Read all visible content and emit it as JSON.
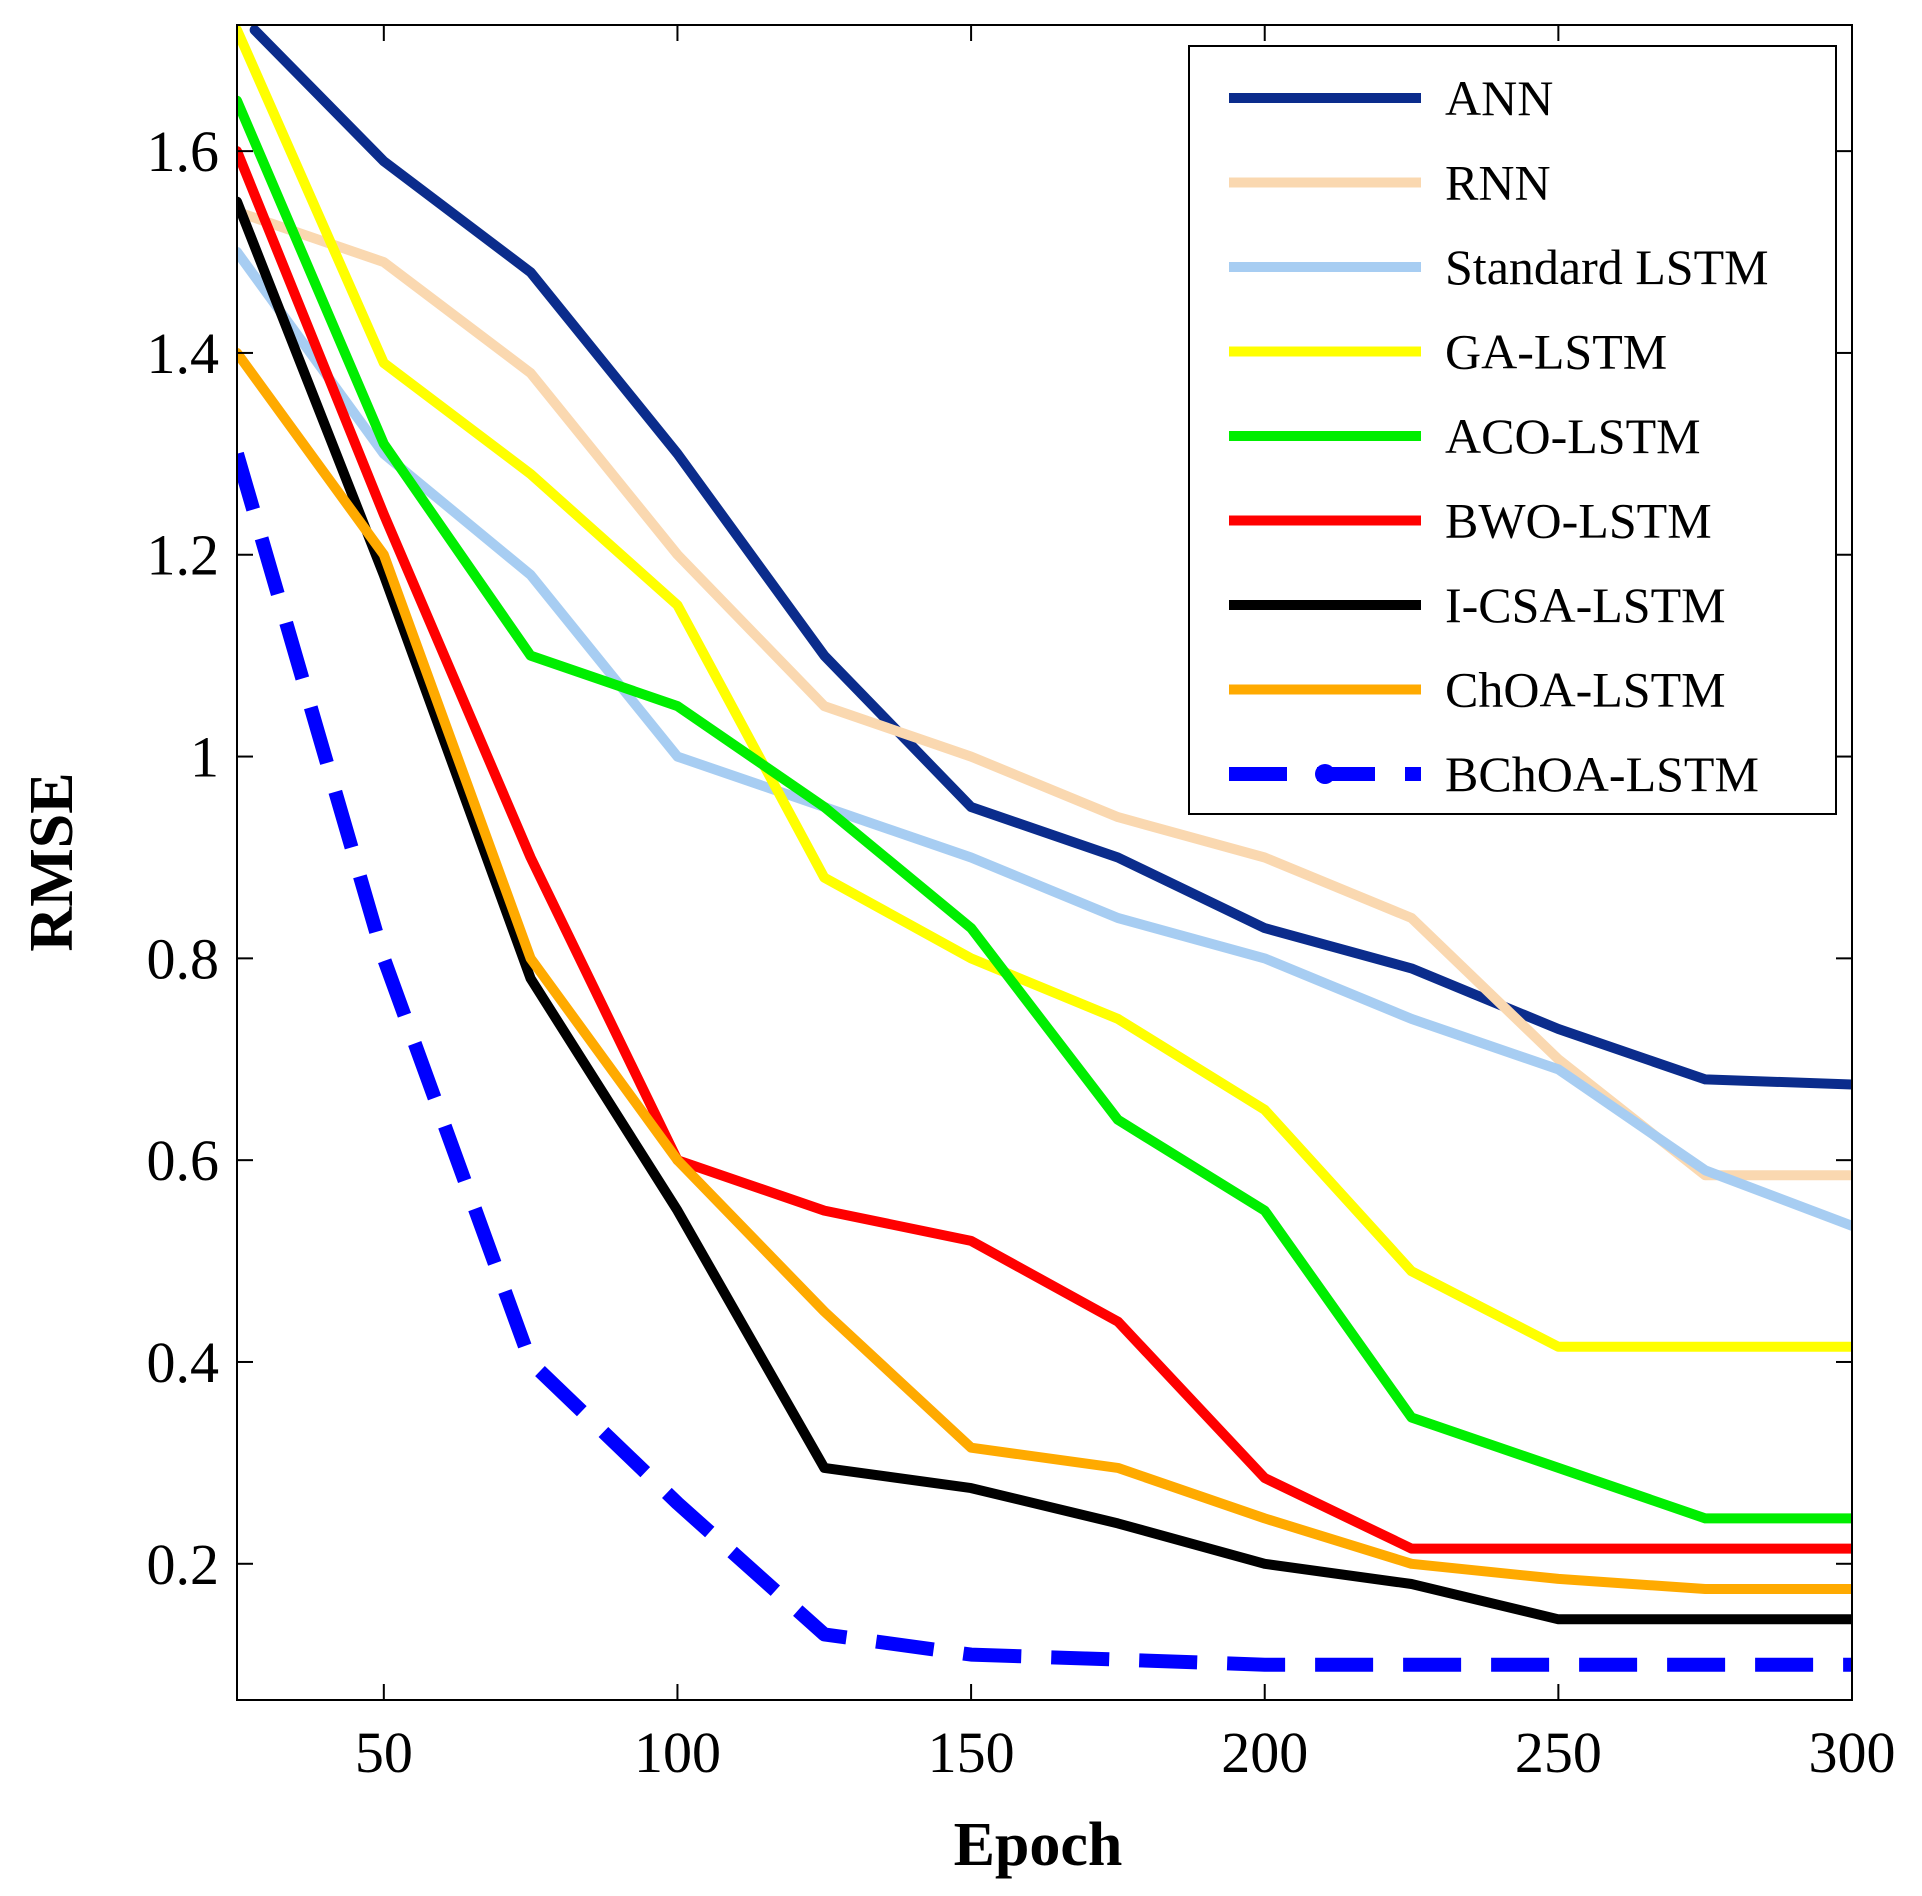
{
  "chart_data": {
    "type": "line",
    "title": "",
    "xlabel": "Epoch",
    "ylabel": "RMSE",
    "xlim": [
      25,
      300
    ],
    "ylim": [
      0.065,
      1.725
    ],
    "xticks": [
      50,
      100,
      150,
      200,
      250,
      300
    ],
    "xtick_labels": [
      "50",
      "100",
      "150",
      "200",
      "250",
      "300"
    ],
    "yticks": [
      0.2,
      0.4,
      0.6,
      0.8,
      1.0,
      1.2,
      1.4,
      1.6
    ],
    "ytick_labels": [
      "0.2",
      "0.4",
      "0.6",
      "0.8",
      "1",
      "1.2",
      "1.4",
      "1.6"
    ],
    "grid": false,
    "legend_position": "top-right",
    "x": [
      25,
      50,
      75,
      100,
      125,
      150,
      175,
      200,
      225,
      250,
      275,
      300
    ],
    "series": [
      {
        "name": "ANN",
        "color": "#0b2c8c",
        "dashed": false,
        "x": [
          28,
          50,
          75,
          100,
          125,
          150,
          175,
          200,
          225,
          250,
          275,
          300
        ],
        "values": [
          1.72,
          1.59,
          1.48,
          1.3,
          1.1,
          0.95,
          0.9,
          0.83,
          0.79,
          0.73,
          0.68,
          0.675
        ]
      },
      {
        "name": "RNN",
        "color": "#fad8b0",
        "dashed": false,
        "values": [
          1.54,
          1.49,
          1.38,
          1.2,
          1.05,
          1.0,
          0.94,
          0.9,
          0.84,
          0.7,
          0.585,
          0.585
        ]
      },
      {
        "name": "Standard LSTM",
        "color": "#a7cdf2",
        "dashed": false,
        "values": [
          1.5,
          1.3,
          1.18,
          1.0,
          0.95,
          0.9,
          0.84,
          0.8,
          0.74,
          0.69,
          0.59,
          0.535
        ]
      },
      {
        "name": "GA-LSTM",
        "color": "#ffff00",
        "dashed": false,
        "values": [
          1.72,
          1.39,
          1.28,
          1.15,
          0.88,
          0.8,
          0.74,
          0.65,
          0.49,
          0.415,
          0.415,
          0.415
        ]
      },
      {
        "name": "ACO-LSTM",
        "color": "#00ee00",
        "dashed": false,
        "values": [
          1.65,
          1.31,
          1.1,
          1.05,
          0.95,
          0.83,
          0.64,
          0.55,
          0.345,
          0.295,
          0.245,
          0.245
        ]
      },
      {
        "name": "BWO-LSTM",
        "color": "#ff0000",
        "dashed": false,
        "values": [
          1.6,
          1.24,
          0.9,
          0.6,
          0.55,
          0.52,
          0.44,
          0.285,
          0.215,
          0.215,
          0.215,
          0.215
        ]
      },
      {
        "name": "I-CSA-LSTM",
        "color": "#000000",
        "dashed": false,
        "values": [
          1.55,
          1.18,
          0.78,
          0.55,
          0.295,
          0.275,
          0.24,
          0.2,
          0.18,
          0.145,
          0.145,
          0.145
        ]
      },
      {
        "name": "ChOA-LSTM",
        "color": "#ffaa00",
        "dashed": false,
        "values": [
          1.4,
          1.2,
          0.8,
          0.6,
          0.45,
          0.315,
          0.295,
          0.245,
          0.2,
          0.185,
          0.175,
          0.175
        ]
      },
      {
        "name": "BChOA-LSTM",
        "color": "#0000ff",
        "dashed": true,
        "values": [
          1.3,
          0.8,
          0.4,
          0.26,
          0.13,
          0.11,
          0.105,
          0.1,
          0.1,
          0.1,
          0.1,
          0.1
        ]
      }
    ]
  }
}
